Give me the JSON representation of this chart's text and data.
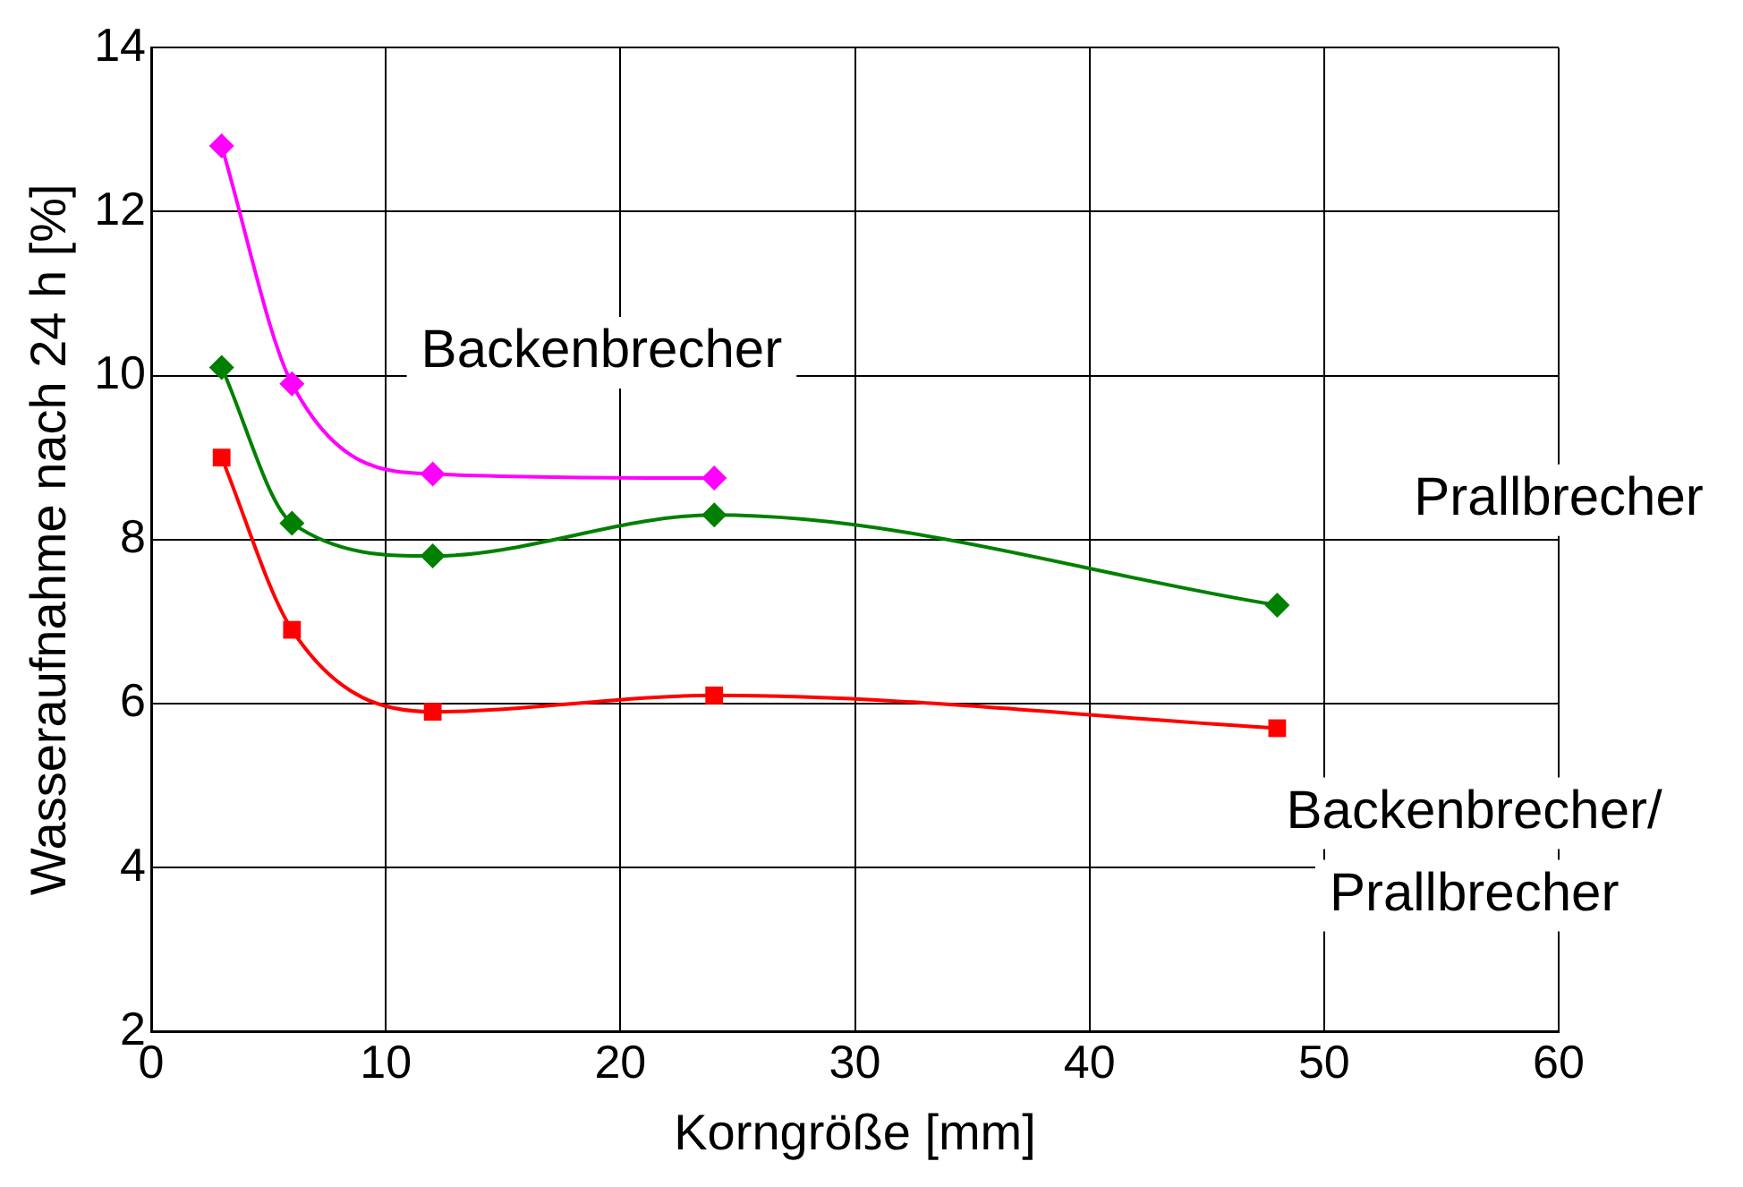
{
  "chart_data": {
    "type": "line",
    "xlabel": "Korngröße [mm]",
    "ylabel": "Wasseraufnahme nach 24 h [%]",
    "xlim": [
      0,
      60
    ],
    "xticks": [
      0,
      10,
      20,
      30,
      40,
      50,
      60
    ],
    "ylim": [
      2,
      14
    ],
    "yticks": [
      2,
      4,
      6,
      8,
      10,
      12,
      14
    ],
    "grid": true,
    "legend": false,
    "series": [
      {
        "name": "Backenbrecher",
        "color": "#ff00ff",
        "marker": "diamond",
        "x": [
          3,
          6,
          12,
          24
        ],
        "values": [
          12.8,
          9.9,
          8.8,
          8.75
        ]
      },
      {
        "name": "Prallbrecher",
        "color": "#008000",
        "marker": "diamond",
        "x": [
          3,
          6,
          12,
          24,
          48
        ],
        "values": [
          10.1,
          8.2,
          7.8,
          8.3,
          7.2
        ]
      },
      {
        "name": "Backenbrecher/Prallbrecher",
        "color": "#ff0000",
        "marker": "square",
        "x": [
          3,
          6,
          12,
          24,
          48
        ],
        "values": [
          9.0,
          6.9,
          5.9,
          6.1,
          5.7
        ]
      }
    ]
  }
}
